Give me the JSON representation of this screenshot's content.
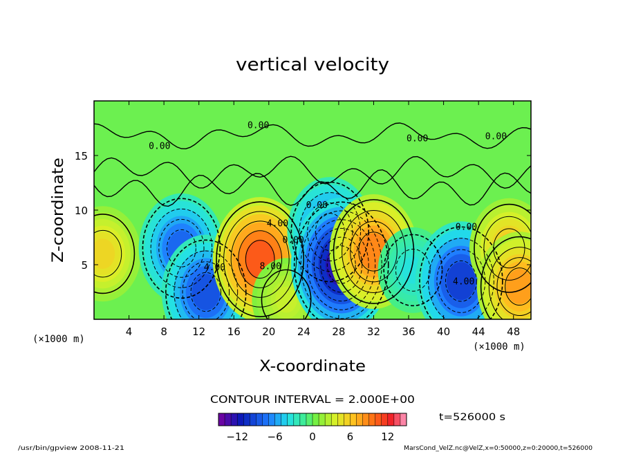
{
  "chart_data": {
    "type": "heatmap",
    "title": "vertical velocity",
    "xlabel": "X-coordinate",
    "ylabel": "Z-coordinate",
    "x_unit": "(×1000 m)",
    "y_unit": "(×1000 m)",
    "xlim": [
      0,
      50
    ],
    "ylim": [
      0,
      20
    ],
    "x_ticks": [
      4,
      8,
      12,
      16,
      20,
      24,
      28,
      32,
      36,
      40,
      44,
      48
    ],
    "y_ticks": [
      5,
      10,
      15
    ],
    "contour_interval_text": "CONTOUR INTERVAL = 2.000E+00",
    "time_text": "t=526000 s",
    "colorbar": {
      "min": -15,
      "max": 15,
      "ticks": [
        -12,
        -6,
        0,
        6,
        12
      ],
      "levels": 30
    },
    "contour_labels": [
      {
        "text": "0.00",
        "x": 7.5,
        "z": 15.6
      },
      {
        "text": "0.00",
        "x": 18.8,
        "z": 17.5
      },
      {
        "text": "0.00",
        "x": 37.0,
        "z": 16.3
      },
      {
        "text": "0.00",
        "x": 46.0,
        "z": 16.5
      },
      {
        "text": "4.00",
        "x": 21.0,
        "z": 8.5
      },
      {
        "text": "0.00",
        "x": 22.8,
        "z": 7.0
      },
      {
        "text": "0.00",
        "x": 25.5,
        "z": 10.2
      },
      {
        "text": "8.00",
        "x": 20.2,
        "z": 4.6
      },
      {
        "text": "4.00",
        "x": 13.8,
        "z": 4.5
      },
      {
        "text": "0.00",
        "x": 42.6,
        "z": 8.2
      },
      {
        "text": "4.00",
        "x": 42.3,
        "z": 3.2
      }
    ],
    "features": [
      {
        "x": 1.0,
        "z": 6.0,
        "w": 6.0
      },
      {
        "x": 10.0,
        "z": 6.5,
        "w": -9.0
      },
      {
        "x": 12.8,
        "z": 2.5,
        "w": -10.0
      },
      {
        "x": 19.0,
        "z": 5.5,
        "w": 12.0
      },
      {
        "x": 22.0,
        "z": 1.8,
        "w": 3.5
      },
      {
        "x": 27.0,
        "z": 8.0,
        "w": -9.0
      },
      {
        "x": 28.3,
        "z": 5.0,
        "w": -14.0
      },
      {
        "x": 32.0,
        "z": 6.2,
        "w": 10.0
      },
      {
        "x": 36.5,
        "z": 4.5,
        "w": -4.0
      },
      {
        "x": 42.0,
        "z": 3.5,
        "w": -11.0
      },
      {
        "x": 47.5,
        "z": 6.5,
        "w": 7.0
      },
      {
        "x": 48.7,
        "z": 3.0,
        "w": 9.0
      }
    ]
  },
  "footer": {
    "left": "/usr/bin/gpview   2008-11-21",
    "right": "MarsCond_VelZ.nc@VelZ,x=0:50000,z=0:20000,t=526000"
  }
}
